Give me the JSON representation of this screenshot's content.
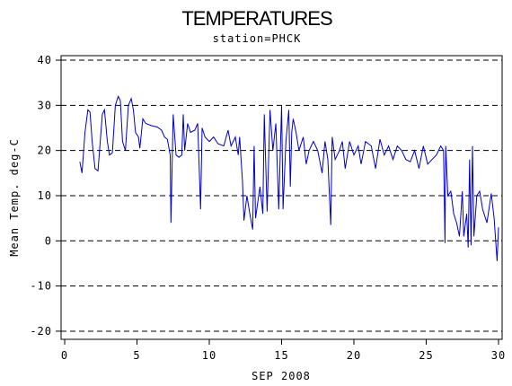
{
  "chart_data": {
    "type": "line",
    "title": "TEMPERATURES",
    "subtitle": "station=PHCK",
    "x_label": "SEP 2008",
    "y_label": "Mean Temp. deg-C",
    "xlim": [
      -0.25,
      30.25
    ],
    "xticks": [
      0,
      5,
      10,
      15,
      20,
      25,
      30
    ],
    "ylim": [
      -21.8,
      41
    ],
    "yticks": [
      -20,
      -10,
      0,
      10,
      20,
      30,
      40
    ],
    "grid": true,
    "series": [
      {
        "color": "#0000cc",
        "x": [
          1.05,
          1.2,
          1.4,
          1.6,
          1.75,
          1.9,
          2.1,
          2.3,
          2.6,
          2.75,
          2.95,
          3.1,
          3.3,
          3.5,
          3.7,
          3.85,
          4.0,
          4.2,
          4.4,
          4.6,
          4.75,
          4.9,
          5.1,
          5.2,
          5.4,
          5.6,
          6.0,
          6.4,
          6.7,
          6.9,
          7.1,
          7.3,
          7.35,
          7.5,
          7.7,
          7.9,
          8.1,
          8.2,
          8.3,
          8.5,
          8.7,
          9.0,
          9.2,
          9.4,
          9.5,
          9.7,
          10.0,
          10.3,
          10.6,
          11.0,
          11.3,
          11.5,
          11.8,
          12.0,
          12.1,
          12.3,
          12.4,
          12.6,
          12.8,
          13.0,
          13.1,
          13.2,
          13.5,
          13.7,
          13.8,
          14.0,
          14.2,
          14.4,
          14.6,
          14.8,
          15.0,
          15.1,
          15.3,
          15.5,
          15.6,
          15.7,
          15.8,
          16.0,
          16.2,
          16.5,
          16.7,
          16.9,
          17.2,
          17.5,
          17.8,
          18.0,
          18.2,
          18.4,
          18.5,
          18.7,
          19.0,
          19.2,
          19.4,
          19.7,
          20.0,
          20.3,
          20.5,
          20.8,
          21.2,
          21.5,
          21.8,
          22.1,
          22.4,
          22.7,
          23.0,
          23.3,
          23.6,
          23.9,
          24.2,
          24.5,
          24.8,
          25.1,
          25.4,
          25.7,
          26.0,
          26.2,
          26.3,
          26.35,
          26.5,
          26.7,
          26.9,
          27.1,
          27.3,
          27.5,
          27.6,
          27.8,
          27.9,
          28.0,
          28.1,
          28.2,
          28.3,
          28.5,
          28.7,
          28.9,
          29.2,
          29.5,
          29.7,
          29.9,
          30.0
        ],
        "values": [
          17.5,
          15,
          24,
          29,
          28.5,
          22,
          16,
          15.5,
          28,
          29,
          22,
          19,
          19.5,
          30,
          32,
          31,
          22,
          20,
          30,
          31.5,
          29,
          24,
          23,
          20.5,
          27,
          26,
          25.5,
          25.2,
          24.5,
          23,
          22.5,
          19,
          4,
          28,
          19,
          18.5,
          19,
          28,
          20,
          26,
          24,
          24.5,
          26,
          7,
          25,
          23,
          22,
          23,
          21.5,
          21,
          24.5,
          21,
          23,
          19,
          23,
          13,
          4.5,
          10,
          6,
          2.5,
          21,
          5,
          12,
          6,
          28,
          6.5,
          29,
          20,
          26,
          7,
          30,
          7,
          22,
          29,
          12,
          24,
          27,
          24,
          20,
          23,
          17,
          20,
          22,
          20,
          15,
          22,
          18,
          3.5,
          23,
          18,
          20,
          22,
          16,
          22,
          19,
          21,
          17,
          22,
          21,
          16,
          22.5,
          19,
          21,
          18,
          21,
          20,
          18,
          17.5,
          20,
          16,
          21,
          17,
          18,
          19,
          21,
          20,
          -0.5,
          21,
          10,
          11,
          6,
          4,
          1,
          11,
          1,
          6,
          -1.5,
          18,
          -1,
          21,
          1,
          10,
          11,
          7,
          4,
          10.5,
          5,
          -4.5,
          3
        ]
      }
    ]
  }
}
